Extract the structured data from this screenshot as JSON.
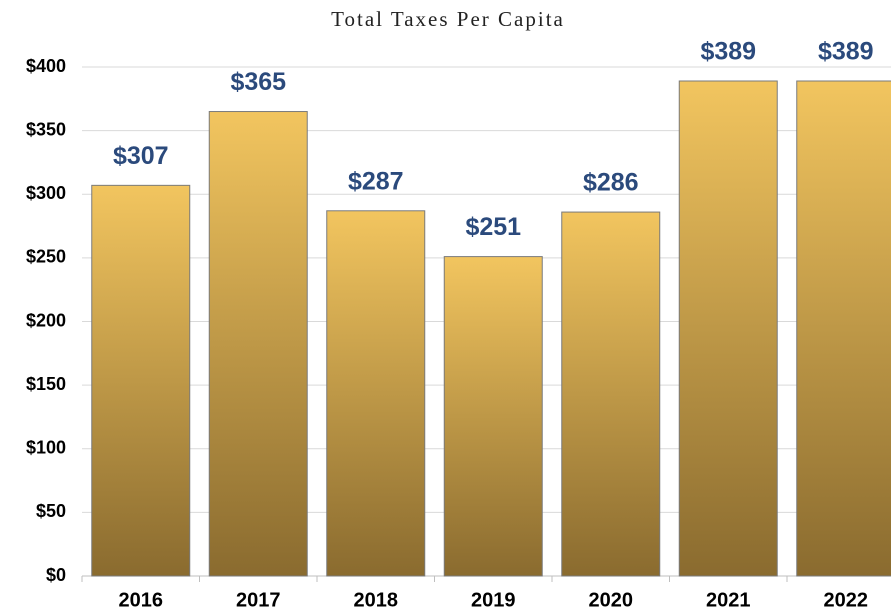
{
  "chart_data": {
    "type": "bar",
    "title": "Total Taxes Per Capita",
    "categories": [
      "2016",
      "2017",
      "2018",
      "2019",
      "2020",
      "2021",
      "2022"
    ],
    "values": [
      307,
      365,
      287,
      251,
      286,
      389,
      389
    ],
    "value_labels": [
      "$307",
      "$365",
      "$287",
      "$251",
      "$286",
      "$389",
      "$389"
    ],
    "gradient": [
      "#f2c55f",
      "#8a6b2f"
    ],
    "value_label_color": "#2b4a7c",
    "ylim": [
      0,
      400
    ],
    "yticks": [
      {
        "value": 0,
        "label": "$0"
      },
      {
        "value": 50,
        "label": "$50"
      },
      {
        "value": 100,
        "label": "$100"
      },
      {
        "value": 150,
        "label": "$150"
      },
      {
        "value": 200,
        "label": "$200"
      },
      {
        "value": 250,
        "label": "$250"
      },
      {
        "value": 300,
        "label": "$300"
      },
      {
        "value": 350,
        "label": "$350"
      },
      {
        "value": 400,
        "label": "$400"
      }
    ],
    "grid": true
  }
}
